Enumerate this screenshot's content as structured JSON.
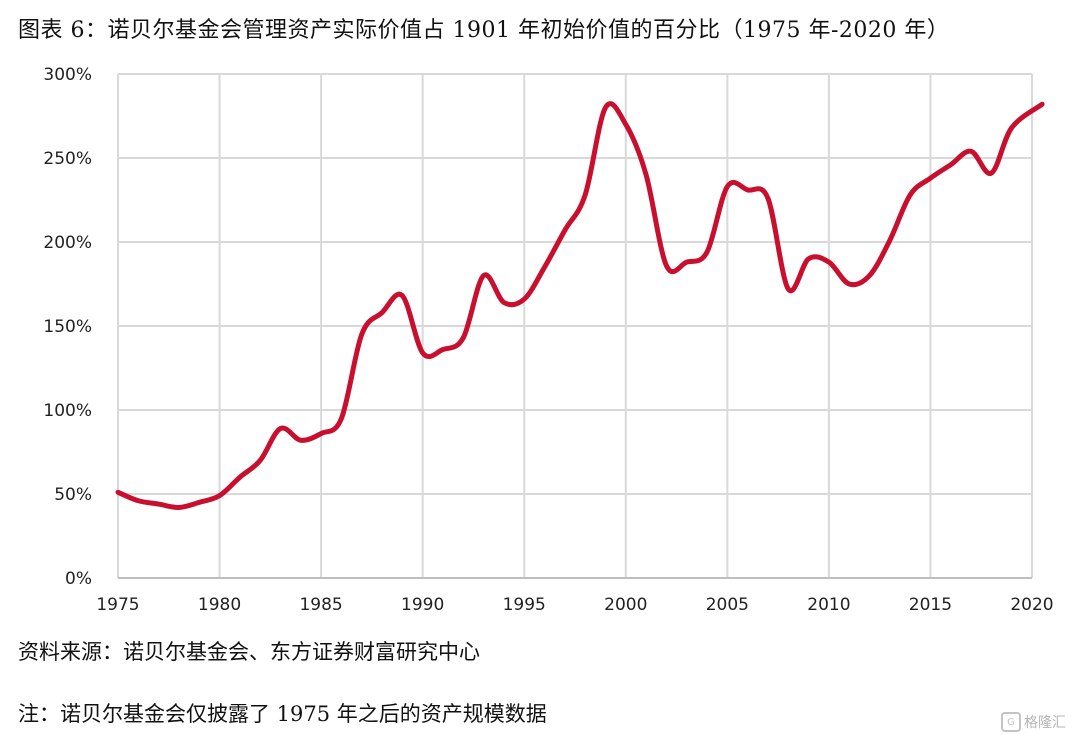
{
  "title": "图表 6：诺贝尔基金会管理资产实际价值占 1901 年初始价值的百分比（1975 年-2020 年）",
  "source": "资料来源：诺贝尔基金会、东方证券财富研究中心",
  "note": "注：诺贝尔基金会仅披露了 1975 年之后的资产规模数据",
  "watermark": {
    "icon": "G",
    "text": "格隆汇"
  },
  "colors": {
    "line": "#c8102e",
    "grid": "#d9d9d9",
    "axis": "#bfbfbf"
  },
  "chart_data": {
    "type": "line",
    "title": "诺贝尔基金会管理资产实际价值占 1901 年初始价值的百分比（1975 年-2020 年）",
    "xlabel": "",
    "ylabel": "",
    "xlim": [
      1975,
      2020
    ],
    "ylim": [
      0,
      300
    ],
    "x_ticks": [
      1975,
      1980,
      1985,
      1990,
      1995,
      2000,
      2005,
      2010,
      2015,
      2020
    ],
    "y_ticks": [
      0,
      50,
      100,
      150,
      200,
      250,
      300
    ],
    "y_tick_labels": [
      "0%",
      "50%",
      "100%",
      "150%",
      "200%",
      "250%",
      "300%"
    ],
    "grid": true,
    "series": [
      {
        "name": "资产实际价值占 1901 年初始价值的百分比",
        "x": [
          1975,
          1976,
          1977,
          1978,
          1979,
          1980,
          1981,
          1982,
          1983,
          1984,
          1985,
          1986,
          1987,
          1988,
          1989,
          1990,
          1991,
          1992,
          1993,
          1994,
          1995,
          1996,
          1997,
          1998,
          1999,
          2000,
          2001,
          2002,
          2003,
          2004,
          2005,
          2006,
          2007,
          2008,
          2009,
          2010,
          2011,
          2012,
          2013,
          2014,
          2015,
          2016,
          2017,
          2018,
          2019,
          2020.5
        ],
        "values": [
          51,
          46,
          44,
          42,
          45,
          49,
          60,
          70,
          89,
          82,
          86,
          95,
          145,
          158,
          168,
          134,
          136,
          143,
          180,
          164,
          166,
          185,
          207,
          228,
          280,
          270,
          240,
          186,
          188,
          194,
          233,
          231,
          226,
          172,
          190,
          188,
          175,
          180,
          201,
          228,
          238,
          246,
          254,
          241,
          268,
          282
        ]
      }
    ]
  }
}
